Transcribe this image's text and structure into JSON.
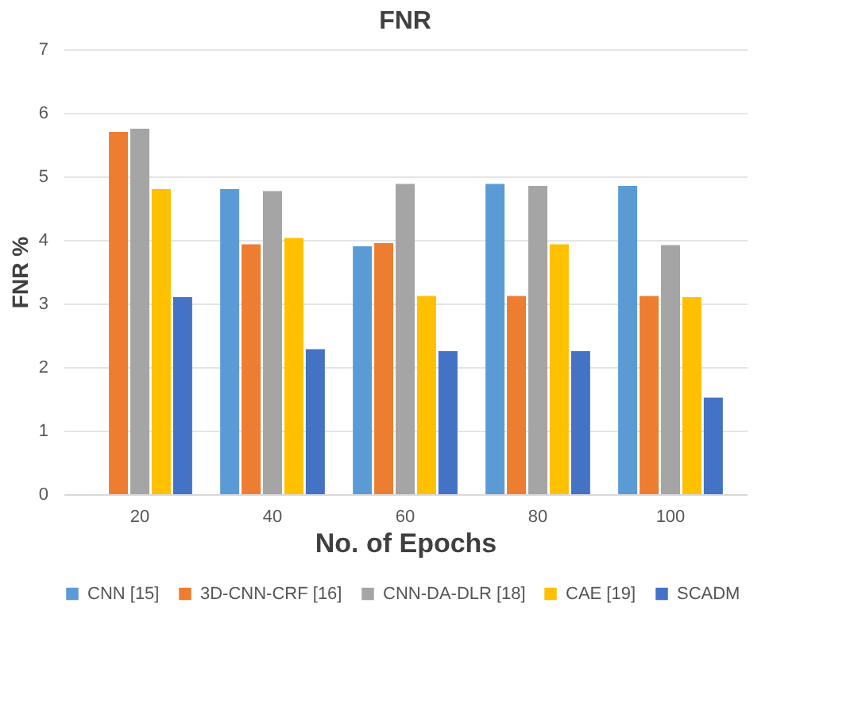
{
  "chart_data": {
    "type": "bar",
    "title": "FNR",
    "xlabel": "No. of Epochs",
    "ylabel": "FNR  %",
    "categories": [
      "20",
      "40",
      "60",
      "80",
      "100"
    ],
    "series": [
      {
        "name": "CNN [15]",
        "color": "#5b9bd5",
        "values": [
          null,
          4.8,
          3.9,
          4.88,
          4.85
        ]
      },
      {
        "name": "3D-CNN-CRF [16]",
        "color": "#ed7d31",
        "values": [
          5.7,
          3.93,
          3.95,
          3.12,
          3.12
        ]
      },
      {
        "name": "CNN-DA-DLR [18]",
        "color": "#a5a5a5",
        "values": [
          5.75,
          4.77,
          4.88,
          4.85,
          3.92
        ]
      },
      {
        "name": "CAE [19]",
        "color": "#ffc000",
        "values": [
          4.8,
          4.03,
          3.12,
          3.93,
          3.1
        ]
      },
      {
        "name": "SCADM",
        "color": "#4472c4",
        "values": [
          3.1,
          2.28,
          2.25,
          2.25,
          1.52
        ]
      }
    ],
    "ylim": [
      0,
      7
    ],
    "yticks": [
      0,
      1,
      2,
      3,
      4,
      5,
      6,
      7
    ],
    "grid": "y",
    "legend": "bottom"
  }
}
